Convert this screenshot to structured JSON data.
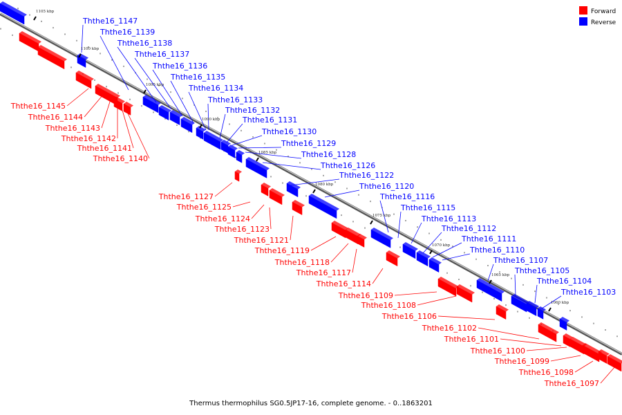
{
  "colors": {
    "forward": "#ff0000",
    "reverse": "#0000ff"
  },
  "legend": {
    "forward_label": "Forward",
    "reverse_label": "Reverse"
  },
  "caption": "Thermus thermophilus SG0.5JP17-16, complete genome. - 0..1863201",
  "scale_labels": [
    "1105 kbp",
    "1100 kbp",
    "1095 kbp",
    "1090 kbp",
    "1085 kbp",
    "1080 kbp",
    "1075 kbp",
    "1070 kbp",
    "1065 kbp",
    "1060 kbp"
  ],
  "reverse_labels": [
    "Ththe16_1147",
    "Ththe16_1139",
    "Ththe16_1138",
    "Ththe16_1137",
    "Ththe16_1136",
    "Ththe16_1135",
    "Ththe16_1134",
    "Ththe16_1133",
    "Ththe16_1132",
    "Ththe16_1131",
    "Ththe16_1130",
    "Ththe16_1129",
    "Ththe16_1128",
    "Ththe16_1126",
    "Ththe16_1122",
    "Ththe16_1120",
    "Ththe16_1116",
    "Ththe16_1115",
    "Ththe16_1113",
    "Ththe16_1112",
    "Ththe16_1111",
    "Ththe16_1110",
    "Ththe16_1107",
    "Ththe16_1105",
    "Ththe16_1104",
    "Ththe16_1103"
  ],
  "forward_labels": [
    "Ththe16_1145",
    "Ththe16_1144",
    "Ththe16_1143",
    "Ththe16_1142",
    "Ththe16_1141",
    "Ththe16_1140",
    "Ththe16_1127",
    "Ththe16_1125",
    "Ththe16_1124",
    "Ththe16_1123",
    "Ththe16_1121",
    "Ththe16_1119",
    "Ththe16_1118",
    "Ththe16_1117",
    "Ththe16_1114",
    "Ththe16_1109",
    "Ththe16_1108",
    "Ththe16_1106",
    "Ththe16_1102",
    "Ththe16_1101",
    "Ththe16_1100",
    "Ththe16_1099",
    "Ththe16_1098",
    "Ththe16_1097"
  ]
}
